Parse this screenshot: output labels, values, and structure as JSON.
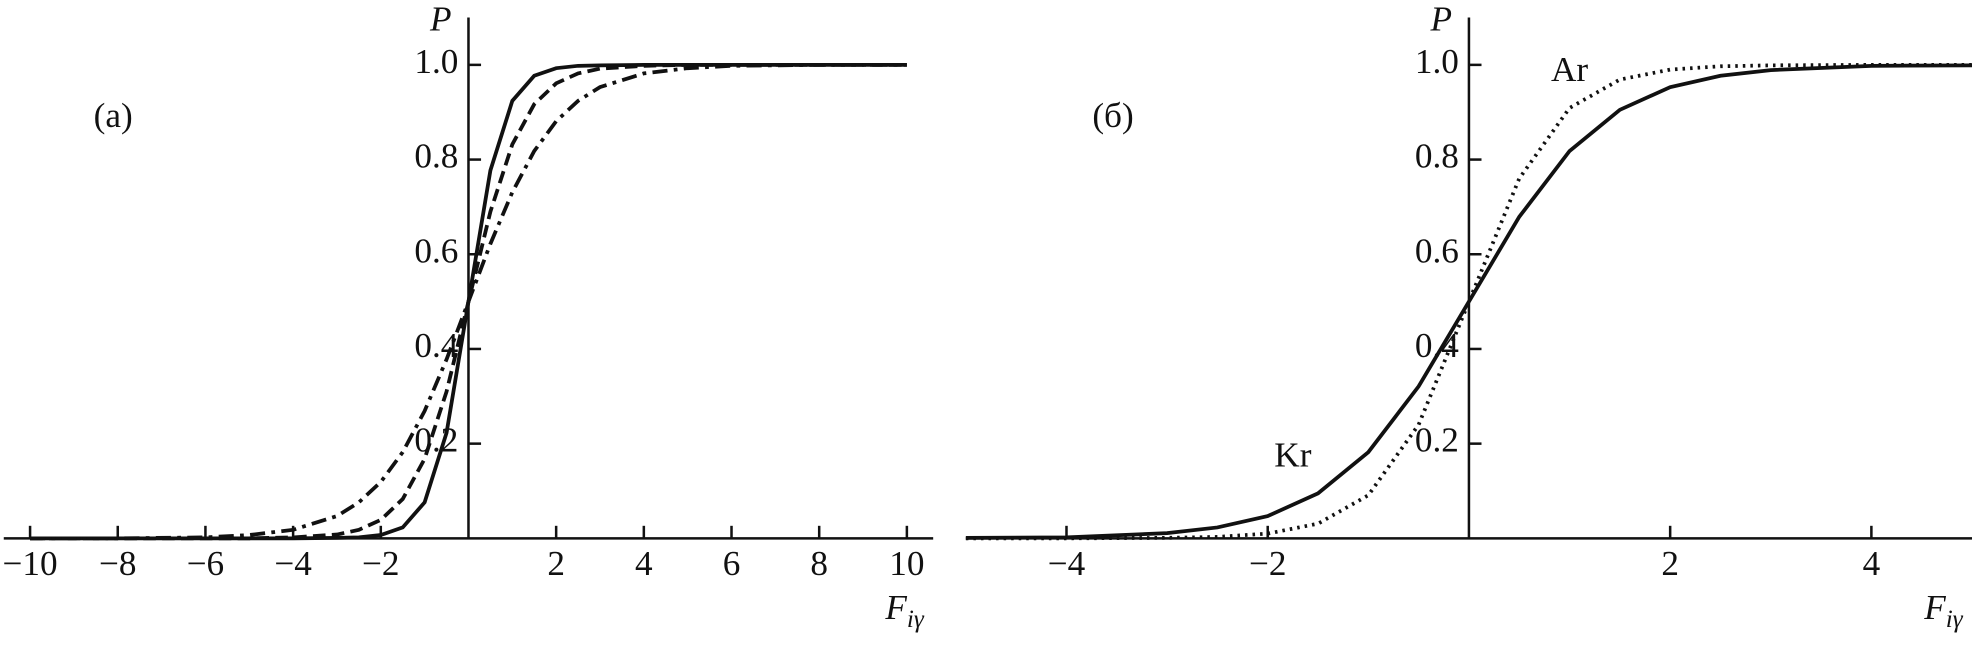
{
  "chart_data": [
    {
      "type": "line",
      "panel_label": "(a)",
      "ylabel": "P",
      "xlabel": "F",
      "xlabel_sub": "iγ",
      "xlim": [
        -10.6,
        10.6
      ],
      "ylim": [
        0,
        1.1
      ],
      "xticks": [
        {
          "value": -10,
          "label": "−10"
        },
        {
          "value": -8,
          "label": "−8"
        },
        {
          "value": -6,
          "label": "−6"
        },
        {
          "value": -4,
          "label": "−4"
        },
        {
          "value": -2,
          "label": "−2"
        },
        2,
        4,
        6,
        8,
        10
      ],
      "yticks": [
        0.2,
        0.4,
        0.6,
        0.8,
        {
          "value": 1,
          "label": "1.0"
        }
      ],
      "x": [
        -10,
        -8,
        -6,
        -5,
        -4,
        -3,
        -2.5,
        -2,
        -1.5,
        -1,
        -0.5,
        0,
        0.5,
        1,
        1.5,
        2,
        2.5,
        3,
        4,
        5,
        6,
        8,
        10
      ],
      "series": [
        {
          "color": "#111111",
          "line_style": "solid",
          "values": [
            0,
            0,
            0,
            0,
            0,
            0.001,
            0.002,
            0.007,
            0.023,
            0.076,
            0.223,
            0.5,
            0.777,
            0.924,
            0.977,
            0.993,
            0.998,
            0.999,
            1,
            1,
            1,
            1,
            1
          ]
        },
        {
          "color": "#111111",
          "line_style": "dashed",
          "values": [
            0,
            0,
            0,
            0,
            0.002,
            0.008,
            0.018,
            0.039,
            0.083,
            0.168,
            0.31,
            0.5,
            0.69,
            0.832,
            0.917,
            0.961,
            0.982,
            0.992,
            0.998,
            1,
            1,
            1,
            1
          ]
        },
        {
          "color": "#111111",
          "line_style": "dashdot",
          "values": [
            0,
            0,
            0.002,
            0.007,
            0.018,
            0.047,
            0.076,
            0.119,
            0.182,
            0.269,
            0.378,
            0.5,
            0.622,
            0.731,
            0.818,
            0.881,
            0.924,
            0.953,
            0.982,
            0.993,
            0.998,
            1,
            1
          ]
        }
      ]
    },
    {
      "type": "line",
      "panel_label": "(б)",
      "ylabel": "P",
      "xlabel": "F",
      "xlabel_sub": "iγ",
      "xlim": [
        -5,
        5
      ],
      "ylim": [
        0,
        1.1
      ],
      "xticks": [
        {
          "value": -4,
          "label": "−4"
        },
        {
          "value": -2,
          "label": "−2"
        },
        2,
        4
      ],
      "yticks": [
        0.2,
        0.4,
        0.6,
        0.8,
        {
          "value": 1,
          "label": "1.0"
        }
      ],
      "x": [
        -5,
        -4,
        -3,
        -2.5,
        -2,
        -1.5,
        -1,
        -0.5,
        0,
        0.5,
        1,
        1.5,
        2,
        2.5,
        3,
        4,
        5
      ],
      "series": [
        {
          "name": "Kr",
          "color": "#111111",
          "line_style": "solid",
          "values": [
            0.001,
            0.002,
            0.011,
            0.023,
            0.047,
            0.095,
            0.182,
            0.321,
            0.5,
            0.679,
            0.818,
            0.905,
            0.953,
            0.977,
            0.989,
            0.998,
            0.999
          ]
        },
        {
          "name": "Ar",
          "color": "#111111",
          "line_style": "dotted",
          "values": [
            0,
            0,
            0.001,
            0.003,
            0.01,
            0.031,
            0.091,
            0.24,
            0.5,
            0.76,
            0.909,
            0.969,
            0.99,
            0.997,
            0.999,
            1,
            1
          ]
        }
      ]
    }
  ]
}
